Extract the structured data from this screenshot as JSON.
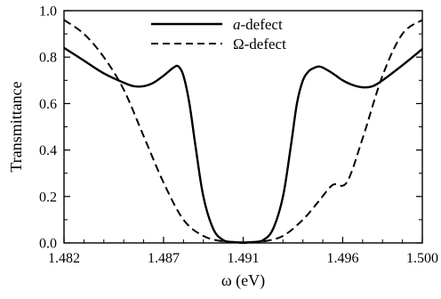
{
  "chart_data": {
    "type": "line",
    "xlabel": "ω (eV)",
    "ylabel": "Transmittance",
    "xlim": [
      1.482,
      1.5
    ],
    "ylim": [
      0.0,
      1.0
    ],
    "xticks": [
      1.482,
      1.487,
      1.491,
      1.496,
      1.5
    ],
    "xtick_labels": [
      "1.482",
      "1.487",
      "1.491",
      "1.496",
      "1.500"
    ],
    "yticks": [
      0.0,
      0.2,
      0.4,
      0.6,
      0.8,
      1.0
    ],
    "ytick_labels": [
      "0.0",
      "0.2",
      "0.4",
      "0.6",
      "0.8",
      "1.0"
    ],
    "grid": false,
    "legend_position": "top-center",
    "series": [
      {
        "name": "a-defect",
        "name_italic": "a",
        "name_suffix": "-defect",
        "style": "solid",
        "color": "#000000",
        "x": [
          1.482,
          1.483,
          1.484,
          1.485,
          1.4855,
          1.486,
          1.4865,
          1.487,
          1.4875,
          1.48775,
          1.488,
          1.4883,
          1.4886,
          1.489,
          1.4895,
          1.49,
          1.4905,
          1.491,
          1.4915,
          1.492,
          1.4925,
          1.493,
          1.4934,
          1.4937,
          1.494,
          1.4943,
          1.4946,
          1.4948,
          1.495,
          1.4955,
          1.496,
          1.4965,
          1.497,
          1.4975,
          1.498,
          1.499,
          1.5
        ],
        "y": [
          0.84,
          0.785,
          0.73,
          0.69,
          0.675,
          0.675,
          0.69,
          0.72,
          0.755,
          0.76,
          0.72,
          0.6,
          0.42,
          0.2,
          0.06,
          0.012,
          0.004,
          0.002,
          0.004,
          0.012,
          0.06,
          0.2,
          0.42,
          0.6,
          0.7,
          0.74,
          0.755,
          0.76,
          0.755,
          0.73,
          0.7,
          0.68,
          0.67,
          0.675,
          0.7,
          0.765,
          0.835
        ]
      },
      {
        "name": "Ω-defect",
        "style": "dashed",
        "color": "#000000",
        "x": [
          1.482,
          1.483,
          1.484,
          1.485,
          1.486,
          1.487,
          1.488,
          1.489,
          1.49,
          1.4905,
          1.491,
          1.4915,
          1.492,
          1.493,
          1.494,
          1.4948,
          1.4955,
          1.4962,
          1.497,
          1.498,
          1.499,
          1.5
        ],
        "y": [
          0.96,
          0.9,
          0.8,
          0.66,
          0.46,
          0.26,
          0.1,
          0.03,
          0.006,
          0.002,
          0.0,
          0.002,
          0.006,
          0.03,
          0.1,
          0.18,
          0.25,
          0.26,
          0.45,
          0.72,
          0.9,
          0.96
        ]
      }
    ]
  }
}
